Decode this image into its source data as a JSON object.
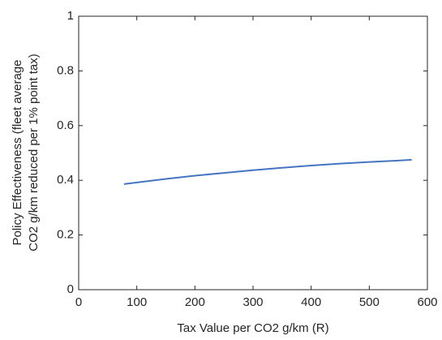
{
  "chart_data": {
    "type": "line",
    "xlabel": "Tax Value per CO2 g/km (R)",
    "ylabel": [
      "Policy Effectiveness (fleet average",
      "CO2 g/km reduced per 1% point tax)"
    ],
    "x": [
      78,
      100,
      150,
      200,
      250,
      300,
      350,
      400,
      450,
      500,
      550,
      573
    ],
    "series": [
      {
        "color": "#4575c0",
        "values": [
          0.386,
          0.392,
          0.405,
          0.417,
          0.427,
          0.437,
          0.446,
          0.454,
          0.461,
          0.467,
          0.472,
          0.475
        ]
      }
    ],
    "xlim": [
      0,
      600
    ],
    "xticks": [
      0,
      100,
      200,
      300,
      400,
      500,
      600
    ],
    "ylim": [
      0,
      1
    ],
    "yticks": [
      0,
      0.2,
      0.4,
      0.6,
      0.8,
      1
    ],
    "grid": false
  }
}
